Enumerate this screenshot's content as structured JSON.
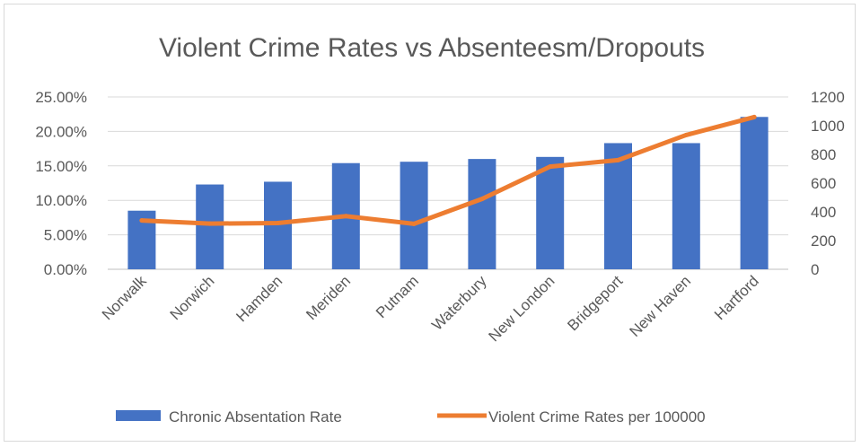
{
  "chart_data": {
    "type": "bar",
    "title": "Violent Crime Rates vs Absenteesm/Dropouts",
    "categories": [
      "Norwalk",
      "Norwich",
      "Hamden",
      "Meriden",
      "Putnam",
      "Waterbury",
      "New London",
      "Bridgeport",
      "New Haven",
      "Hartford"
    ],
    "series": [
      {
        "name": "Chronic Absentation Rate",
        "type": "bar",
        "axis": "left",
        "color": "#4472c4",
        "values": [
          0.085,
          0.123,
          0.127,
          0.154,
          0.156,
          0.16,
          0.163,
          0.183,
          0.183,
          0.221
        ]
      },
      {
        "name": "Violent Crime Rates per 100000",
        "type": "line",
        "axis": "right",
        "color": "#ed7d31",
        "values": [
          340,
          318,
          322,
          370,
          316,
          490,
          715,
          760,
          935,
          1060
        ]
      }
    ],
    "y_left": {
      "min": 0,
      "max": 0.25,
      "ticks": [
        "0.00%",
        "5.00%",
        "10.00%",
        "15.00%",
        "20.00%",
        "25.00%"
      ]
    },
    "y_right": {
      "min": 0,
      "max": 1200,
      "ticks": [
        "0",
        "200",
        "400",
        "600",
        "800",
        "1000",
        "1200"
      ]
    },
    "grid": true,
    "legend_position": "bottom"
  }
}
